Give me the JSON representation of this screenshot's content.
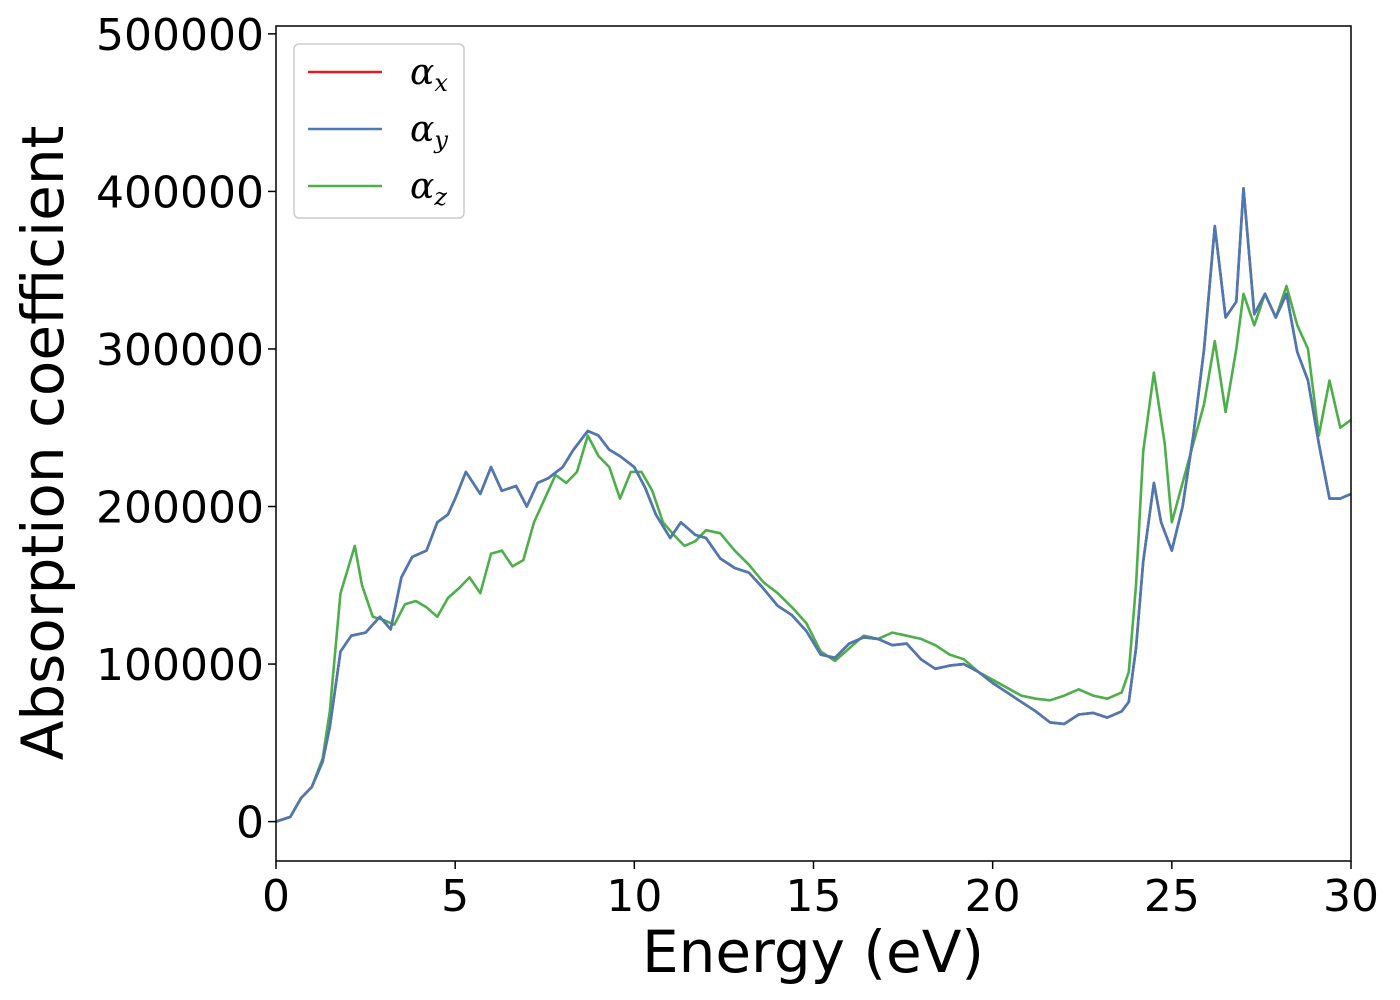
{
  "chart_data": {
    "type": "line",
    "xlabel": "Energy (eV)",
    "ylabel": "Absorption coefficient",
    "xlim": [
      0,
      30
    ],
    "ylim": [
      -25000,
      505000
    ],
    "x_ticks": [
      0,
      5,
      10,
      15,
      20,
      25,
      30
    ],
    "x_tick_labels": [
      "0",
      "5",
      "10",
      "15",
      "20",
      "25",
      "30"
    ],
    "y_ticks": [
      0,
      100000,
      200000,
      300000,
      400000,
      500000
    ],
    "y_tick_labels": [
      "0",
      "100000",
      "200000",
      "300000",
      "400000",
      "500000"
    ],
    "grid": false,
    "legend_position": "upper-left",
    "series": [
      {
        "name": "α_x",
        "legend_symbol": "α",
        "legend_subscript": "x",
        "color": "#e41a1c",
        "x": [
          0,
          0.4,
          0.7,
          1.0,
          1.3,
          1.5,
          1.8,
          2.1,
          2.5,
          2.9,
          3.2,
          3.5,
          3.8,
          4.2,
          4.5,
          4.8,
          5.0,
          5.3,
          5.7,
          6.0,
          6.3,
          6.7,
          7.0,
          7.3,
          7.6,
          8.0,
          8.3,
          8.7,
          9.0,
          9.3,
          9.6,
          10.0,
          10.3,
          10.6,
          11.0,
          11.3,
          11.7,
          12.0,
          12.4,
          12.8,
          13.2,
          13.6,
          14.0,
          14.4,
          14.8,
          15.2,
          15.6,
          16.0,
          16.4,
          16.8,
          17.2,
          17.6,
          18.0,
          18.4,
          18.8,
          19.2,
          19.6,
          20.0,
          20.4,
          20.8,
          21.2,
          21.6,
          22.0,
          22.4,
          22.8,
          23.2,
          23.6,
          23.8,
          24.0,
          24.2,
          24.5,
          24.7,
          25.0,
          25.3,
          25.6,
          25.9,
          26.2,
          26.5,
          26.8,
          27.0,
          27.3,
          27.6,
          27.9,
          28.2,
          28.5,
          28.8,
          29.1,
          29.4,
          29.7,
          30.0
        ],
        "y": [
          0,
          3000,
          15000,
          22000,
          38000,
          60000,
          108000,
          118000,
          120000,
          130000,
          122000,
          155000,
          168000,
          172000,
          190000,
          195000,
          205000,
          222000,
          208000,
          225000,
          210000,
          213000,
          200000,
          215000,
          218000,
          225000,
          236000,
          248000,
          245000,
          236000,
          232000,
          225000,
          212000,
          195000,
          180000,
          190000,
          182000,
          180000,
          167000,
          161000,
          158000,
          148000,
          137000,
          131000,
          121000,
          106000,
          104000,
          113000,
          117000,
          116000,
          112000,
          113000,
          103000,
          97000,
          99000,
          100000,
          95000,
          88000,
          82000,
          76000,
          70000,
          63000,
          62000,
          68000,
          69000,
          66000,
          70000,
          76000,
          110000,
          165000,
          215000,
          190000,
          172000,
          200000,
          245000,
          300000,
          378000,
          320000,
          330000,
          402000,
          322000,
          335000,
          320000,
          335000,
          298000,
          280000,
          240000,
          205000,
          205000,
          208000
        ]
      },
      {
        "name": "α_y",
        "legend_symbol": "α",
        "legend_subscript": "y",
        "color": "#4a7ab5",
        "x": [
          0,
          0.4,
          0.7,
          1.0,
          1.3,
          1.5,
          1.8,
          2.1,
          2.5,
          2.9,
          3.2,
          3.5,
          3.8,
          4.2,
          4.5,
          4.8,
          5.0,
          5.3,
          5.7,
          6.0,
          6.3,
          6.7,
          7.0,
          7.3,
          7.6,
          8.0,
          8.3,
          8.7,
          9.0,
          9.3,
          9.6,
          10.0,
          10.3,
          10.6,
          11.0,
          11.3,
          11.7,
          12.0,
          12.4,
          12.8,
          13.2,
          13.6,
          14.0,
          14.4,
          14.8,
          15.2,
          15.6,
          16.0,
          16.4,
          16.8,
          17.2,
          17.6,
          18.0,
          18.4,
          18.8,
          19.2,
          19.6,
          20.0,
          20.4,
          20.8,
          21.2,
          21.6,
          22.0,
          22.4,
          22.8,
          23.2,
          23.6,
          23.8,
          24.0,
          24.2,
          24.5,
          24.7,
          25.0,
          25.3,
          25.6,
          25.9,
          26.2,
          26.5,
          26.8,
          27.0,
          27.3,
          27.6,
          27.9,
          28.2,
          28.5,
          28.8,
          29.1,
          29.4,
          29.7,
          30.0
        ],
        "y": [
          0,
          3000,
          15000,
          22000,
          38000,
          60000,
          108000,
          118000,
          120000,
          130000,
          122000,
          155000,
          168000,
          172000,
          190000,
          195000,
          205000,
          222000,
          208000,
          225000,
          210000,
          213000,
          200000,
          215000,
          218000,
          225000,
          236000,
          248000,
          245000,
          236000,
          232000,
          225000,
          212000,
          195000,
          180000,
          190000,
          182000,
          180000,
          167000,
          161000,
          158000,
          148000,
          137000,
          131000,
          121000,
          106000,
          104000,
          113000,
          117000,
          116000,
          112000,
          113000,
          103000,
          97000,
          99000,
          100000,
          95000,
          88000,
          82000,
          76000,
          70000,
          63000,
          62000,
          68000,
          69000,
          66000,
          70000,
          76000,
          110000,
          165000,
          215000,
          190000,
          172000,
          200000,
          245000,
          300000,
          378000,
          320000,
          330000,
          402000,
          322000,
          335000,
          320000,
          335000,
          298000,
          280000,
          240000,
          205000,
          205000,
          208000
        ]
      },
      {
        "name": "α_z",
        "legend_symbol": "α",
        "legend_subscript": "z",
        "color": "#4daf4a",
        "x": [
          0,
          0.4,
          0.7,
          1.0,
          1.3,
          1.5,
          1.8,
          2.0,
          2.2,
          2.4,
          2.7,
          3.0,
          3.3,
          3.6,
          3.9,
          4.2,
          4.5,
          4.8,
          5.1,
          5.4,
          5.7,
          6.0,
          6.3,
          6.6,
          6.9,
          7.2,
          7.5,
          7.8,
          8.1,
          8.4,
          8.7,
          9.0,
          9.3,
          9.6,
          9.9,
          10.2,
          10.5,
          10.8,
          11.1,
          11.4,
          11.7,
          12.0,
          12.4,
          12.8,
          13.2,
          13.6,
          14.0,
          14.4,
          14.8,
          15.2,
          15.6,
          16.0,
          16.4,
          16.8,
          17.2,
          17.6,
          18.0,
          18.4,
          18.8,
          19.2,
          19.6,
          20.0,
          20.4,
          20.8,
          21.2,
          21.6,
          22.0,
          22.4,
          22.8,
          23.2,
          23.6,
          23.8,
          24.0,
          24.2,
          24.5,
          24.8,
          25.0,
          25.3,
          25.6,
          25.9,
          26.2,
          26.5,
          26.8,
          27.0,
          27.3,
          27.6,
          27.9,
          28.2,
          28.5,
          28.8,
          29.1,
          29.4,
          29.7,
          30.0
        ],
        "y": [
          0,
          3000,
          15000,
          22000,
          40000,
          70000,
          145000,
          160000,
          175000,
          150000,
          130000,
          128000,
          125000,
          138000,
          140000,
          136000,
          130000,
          142000,
          148000,
          155000,
          145000,
          170000,
          172000,
          162000,
          166000,
          190000,
          205000,
          220000,
          215000,
          222000,
          245000,
          232000,
          225000,
          205000,
          222000,
          222000,
          210000,
          190000,
          182000,
          175000,
          178000,
          185000,
          183000,
          172000,
          163000,
          152000,
          145000,
          136000,
          126000,
          108000,
          102000,
          110000,
          118000,
          116000,
          120000,
          118000,
          116000,
          112000,
          106000,
          103000,
          95000,
          90000,
          85000,
          80000,
          78000,
          77000,
          80000,
          84000,
          80000,
          78000,
          82000,
          95000,
          150000,
          235000,
          285000,
          240000,
          190000,
          215000,
          240000,
          265000,
          305000,
          260000,
          300000,
          335000,
          315000,
          335000,
          320000,
          340000,
          315000,
          300000,
          245000,
          280000,
          250000,
          255000
        ]
      }
    ]
  }
}
